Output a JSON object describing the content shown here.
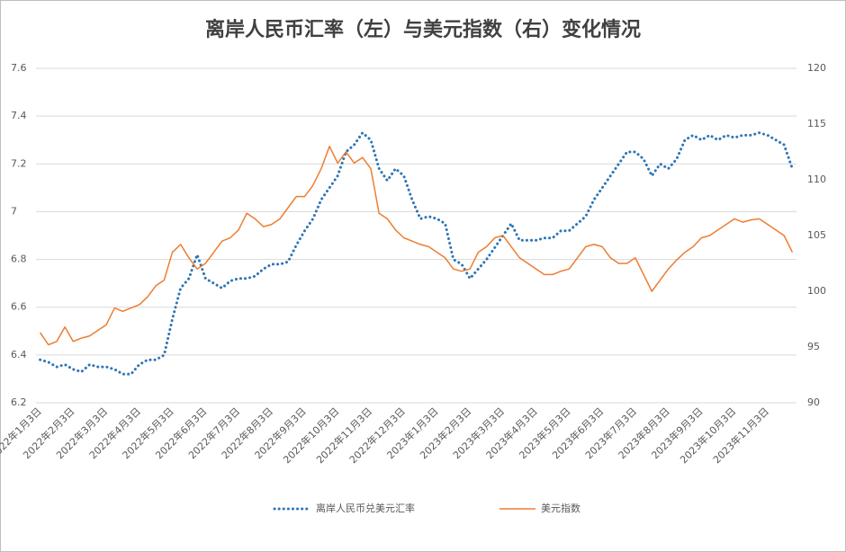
{
  "chart_data": {
    "type": "line",
    "title": "离岸人民币汇率（左）与美元指数（右）变化情况",
    "categories": [
      "2022年1月3日",
      null,
      null,
      null,
      "2022年2月3日",
      null,
      null,
      null,
      "2022年3月3日",
      null,
      null,
      null,
      "2022年4月3日",
      null,
      null,
      null,
      "2022年5月3日",
      null,
      null,
      null,
      "2022年6月3日",
      null,
      null,
      null,
      "2022年7月3日",
      null,
      null,
      null,
      "2022年8月3日",
      null,
      null,
      null,
      "2022年9月3日",
      null,
      null,
      null,
      "2022年10月3日",
      null,
      null,
      null,
      "2022年11月3日",
      null,
      null,
      null,
      "2022年12月3日",
      null,
      null,
      null,
      "2023年1月3日",
      null,
      null,
      null,
      "2023年2月3日",
      null,
      null,
      null,
      "2023年3月3日",
      null,
      null,
      null,
      "2023年4月3日",
      null,
      null,
      null,
      "2023年5月3日",
      null,
      null,
      null,
      "2023年6月3日",
      null,
      null,
      null,
      "2023年7月3日",
      null,
      null,
      null,
      "2023年8月3日",
      null,
      null,
      null,
      "2023年9月3日",
      null,
      null,
      null,
      "2023年10月3日",
      null,
      null,
      null,
      "2023年11月3日",
      null,
      null,
      null
    ],
    "series": [
      {
        "name": "离岸人民币兑美元汇率",
        "color": "#2e75b6",
        "axis": "y",
        "dotted": true,
        "values": [
          6.38,
          6.37,
          6.35,
          6.36,
          6.34,
          6.33,
          6.36,
          6.35,
          6.35,
          6.34,
          6.32,
          6.32,
          6.36,
          6.38,
          6.38,
          6.4,
          6.55,
          6.68,
          6.72,
          6.82,
          6.72,
          6.7,
          6.68,
          6.71,
          6.72,
          6.72,
          6.73,
          6.76,
          6.78,
          6.78,
          6.79,
          6.86,
          6.92,
          6.97,
          7.05,
          7.1,
          7.15,
          7.25,
          7.28,
          7.33,
          7.3,
          7.18,
          7.13,
          7.18,
          7.15,
          7.05,
          6.97,
          6.98,
          6.97,
          6.95,
          6.8,
          6.78,
          6.72,
          6.76,
          6.8,
          6.85,
          6.9,
          6.95,
          6.88,
          6.88,
          6.88,
          6.89,
          6.89,
          6.92,
          6.92,
          6.95,
          6.98,
          7.05,
          7.1,
          7.15,
          7.2,
          7.25,
          7.25,
          7.22,
          7.15,
          7.2,
          7.18,
          7.22,
          7.3,
          7.32,
          7.3,
          7.32,
          7.3,
          7.32,
          7.31,
          7.32,
          7.32,
          7.33,
          7.32,
          7.3,
          7.28,
          7.18
        ]
      },
      {
        "name": "美元指数",
        "color": "#ed7d31",
        "axis": "y2",
        "dotted": false,
        "values": [
          96.3,
          95.2,
          95.5,
          96.8,
          95.5,
          95.8,
          96.0,
          96.5,
          97.0,
          98.5,
          98.2,
          98.5,
          98.8,
          99.5,
          100.5,
          101.0,
          103.5,
          104.2,
          103.0,
          102.0,
          102.5,
          103.5,
          104.5,
          104.8,
          105.5,
          107.0,
          106.5,
          105.8,
          106.0,
          106.5,
          107.5,
          108.5,
          108.5,
          109.5,
          111.0,
          113.0,
          111.5,
          112.5,
          111.5,
          112.0,
          111.0,
          107.0,
          106.5,
          105.5,
          104.8,
          104.5,
          104.2,
          104.0,
          103.5,
          103.0,
          102.0,
          101.8,
          102.0,
          103.5,
          104.0,
          104.8,
          105.0,
          104.0,
          103.0,
          102.5,
          102.0,
          101.5,
          101.5,
          101.8,
          102.0,
          103.0,
          104.0,
          104.2,
          104.0,
          103.0,
          102.5,
          102.5,
          103.0,
          101.5,
          100.0,
          101.0,
          102.0,
          102.8,
          103.5,
          104.0,
          104.8,
          105.0,
          105.5,
          106.0,
          106.5,
          106.2,
          106.4,
          106.5,
          106.0,
          105.5,
          105.0,
          103.5
        ]
      }
    ],
    "ylim": [
      6.2,
      7.6
    ],
    "yticks": [
      6.2,
      6.4,
      6.6,
      6.8,
      7,
      7.2,
      7.4,
      7.6
    ],
    "y2lim": [
      90,
      120
    ],
    "y2ticks": [
      90,
      95,
      100,
      105,
      110,
      115,
      120
    ],
    "grid": true,
    "legend": "bottom"
  }
}
